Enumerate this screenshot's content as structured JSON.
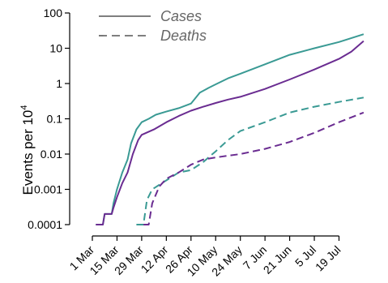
{
  "chart_data": {
    "type": "line",
    "ylabel": "Events per 10",
    "ylabel_superscript": "4",
    "yscale": "log",
    "ylim": [
      0.0001,
      100
    ],
    "y_ticks": [
      {
        "value": 100,
        "label": "100"
      },
      {
        "value": 10,
        "label": "10"
      },
      {
        "value": 1,
        "label": "1"
      },
      {
        "value": 0.1,
        "label": "0.1"
      },
      {
        "value": 0.01,
        "label": "0.01"
      },
      {
        "value": 0.001,
        "label": "0.001"
      },
      {
        "value": 0.0001,
        "label": "0.0001"
      }
    ],
    "xlim": [
      "2020-03-01",
      "2020-08-08"
    ],
    "x_ticks": [
      {
        "value": "2020-03-01",
        "label": "1 Mar"
      },
      {
        "value": "2020-03-15",
        "label": "15 Mar"
      },
      {
        "value": "2020-03-29",
        "label": "29 Mar"
      },
      {
        "value": "2020-04-12",
        "label": "12 Apr"
      },
      {
        "value": "2020-04-26",
        "label": "26 Apr"
      },
      {
        "value": "2020-05-10",
        "label": "10 May"
      },
      {
        "value": "2020-05-24",
        "label": "24 May"
      },
      {
        "value": "2020-06-07",
        "label": "7 Jun"
      },
      {
        "value": "2020-06-21",
        "label": "21 Jun"
      },
      {
        "value": "2020-07-05",
        "label": "5 Jul"
      },
      {
        "value": "2020-07-19",
        "label": "19 Jul"
      }
    ],
    "legend": {
      "placement": "top-left",
      "entries": [
        {
          "label": "Cases",
          "style": "solid"
        },
        {
          "label": "Deaths",
          "style": "dashed"
        }
      ]
    },
    "grid": false,
    "series": [
      {
        "metric": "Cases",
        "group": "teal",
        "color": "#3a9a94",
        "style": "solid",
        "points": [
          [
            "2020-03-03",
            0.0001
          ],
          [
            "2020-03-07",
            0.0001
          ],
          [
            "2020-03-08",
            0.0002
          ],
          [
            "2020-03-12",
            0.0002
          ],
          [
            "2020-03-13",
            0.0004
          ],
          [
            "2020-03-15",
            0.001
          ],
          [
            "2020-03-18",
            0.003
          ],
          [
            "2020-03-21",
            0.007
          ],
          [
            "2020-03-23",
            0.02
          ],
          [
            "2020-03-26",
            0.05
          ],
          [
            "2020-03-29",
            0.08
          ],
          [
            "2020-04-02",
            0.1
          ],
          [
            "2020-04-06",
            0.13
          ],
          [
            "2020-04-12",
            0.16
          ],
          [
            "2020-04-19",
            0.2
          ],
          [
            "2020-04-26",
            0.27
          ],
          [
            "2020-05-01",
            0.55
          ],
          [
            "2020-05-06",
            0.75
          ],
          [
            "2020-05-10",
            0.95
          ],
          [
            "2020-05-17",
            1.4
          ],
          [
            "2020-05-24",
            1.9
          ],
          [
            "2020-06-07",
            3.5
          ],
          [
            "2020-06-21",
            6.5
          ],
          [
            "2020-07-05",
            10
          ],
          [
            "2020-07-19",
            15
          ],
          [
            "2020-08-02",
            25
          ]
        ]
      },
      {
        "metric": "Cases",
        "group": "purple",
        "color": "#6a2c91",
        "style": "solid",
        "points": [
          [
            "2020-03-03",
            0.0001
          ],
          [
            "2020-03-07",
            0.0001
          ],
          [
            "2020-03-08",
            0.0002
          ],
          [
            "2020-03-12",
            0.0002
          ],
          [
            "2020-03-13",
            0.0003
          ],
          [
            "2020-03-15",
            0.0006
          ],
          [
            "2020-03-18",
            0.0015
          ],
          [
            "2020-03-21",
            0.003
          ],
          [
            "2020-03-24",
            0.01
          ],
          [
            "2020-03-27",
            0.025
          ],
          [
            "2020-03-29",
            0.035
          ],
          [
            "2020-04-05",
            0.05
          ],
          [
            "2020-04-12",
            0.08
          ],
          [
            "2020-04-19",
            0.12
          ],
          [
            "2020-04-26",
            0.17
          ],
          [
            "2020-05-03",
            0.22
          ],
          [
            "2020-05-10",
            0.28
          ],
          [
            "2020-05-17",
            0.35
          ],
          [
            "2020-05-24",
            0.42
          ],
          [
            "2020-06-07",
            0.7
          ],
          [
            "2020-06-21",
            1.3
          ],
          [
            "2020-07-05",
            2.5
          ],
          [
            "2020-07-19",
            5
          ],
          [
            "2020-07-26",
            8
          ],
          [
            "2020-08-02",
            16
          ]
        ]
      },
      {
        "metric": "Deaths",
        "group": "teal",
        "color": "#3a9a94",
        "style": "dashed",
        "points": [
          [
            "2020-03-26",
            0.0001
          ],
          [
            "2020-03-30",
            0.0001
          ],
          [
            "2020-04-01",
            0.0005
          ],
          [
            "2020-04-04",
            0.001
          ],
          [
            "2020-04-12",
            0.0018
          ],
          [
            "2020-04-19",
            0.003
          ],
          [
            "2020-04-26",
            0.0035
          ],
          [
            "2020-05-03",
            0.006
          ],
          [
            "2020-05-10",
            0.012
          ],
          [
            "2020-05-17",
            0.025
          ],
          [
            "2020-05-24",
            0.045
          ],
          [
            "2020-06-07",
            0.08
          ],
          [
            "2020-06-21",
            0.15
          ],
          [
            "2020-07-05",
            0.22
          ],
          [
            "2020-07-19",
            0.3
          ],
          [
            "2020-08-02",
            0.4
          ]
        ]
      },
      {
        "metric": "Deaths",
        "group": "purple",
        "color": "#6a2c91",
        "style": "dashed",
        "points": [
          [
            "2020-03-30",
            0.0001
          ],
          [
            "2020-04-02",
            0.0001
          ],
          [
            "2020-04-04",
            0.0004
          ],
          [
            "2020-04-08",
            0.0012
          ],
          [
            "2020-04-12",
            0.002
          ],
          [
            "2020-04-19",
            0.003
          ],
          [
            "2020-04-26",
            0.005
          ],
          [
            "2020-05-03",
            0.007
          ],
          [
            "2020-05-10",
            0.008
          ],
          [
            "2020-05-17",
            0.009
          ],
          [
            "2020-05-24",
            0.01
          ],
          [
            "2020-06-07",
            0.014
          ],
          [
            "2020-06-21",
            0.022
          ],
          [
            "2020-07-05",
            0.04
          ],
          [
            "2020-07-19",
            0.08
          ],
          [
            "2020-08-02",
            0.15
          ]
        ]
      }
    ]
  }
}
